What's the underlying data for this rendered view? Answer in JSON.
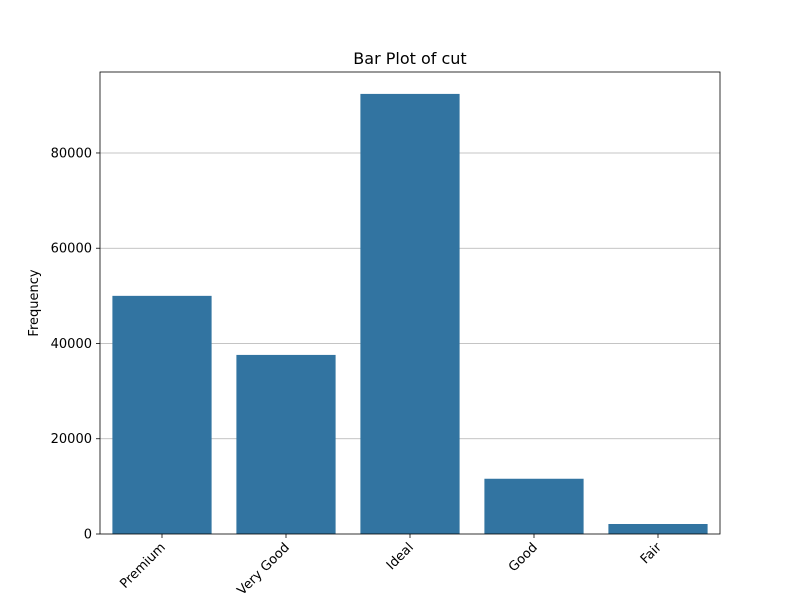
{
  "chart_data": {
    "type": "bar",
    "title": "Bar Plot of cut",
    "xlabel": "",
    "ylabel": "Frequency",
    "categories": [
      "Premium",
      "Very Good",
      "Ideal",
      "Good",
      "Fair"
    ],
    "values": [
      50000,
      37600,
      92400,
      11600,
      2100
    ],
    "ylim": [
      0,
      97000
    ],
    "yticks": [
      0,
      20000,
      40000,
      60000,
      80000
    ],
    "ytick_labels": [
      "0",
      "20000",
      "40000",
      "60000",
      "80000"
    ],
    "grid": "horizontal",
    "bar_color": "#3274a1",
    "x_tick_rotation_deg": 45
  }
}
